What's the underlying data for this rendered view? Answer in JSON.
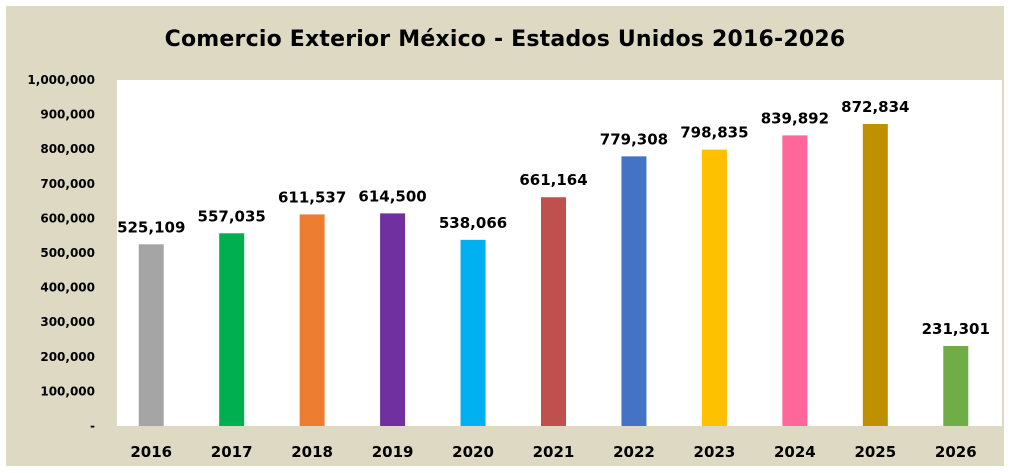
{
  "chart_data": {
    "type": "bar",
    "title": "Comercio Exterior México - Estados Unidos 2016-2026",
    "xlabel": "",
    "ylabel": "",
    "categories": [
      "2016",
      "2017",
      "2018",
      "2019",
      "2020",
      "2021",
      "2022",
      "2023",
      "2024",
      "2025",
      "2026"
    ],
    "values": [
      525109,
      557035,
      611537,
      614500,
      538066,
      661164,
      779308,
      798835,
      839892,
      872834,
      231301
    ],
    "data_labels": [
      "525,109",
      "557,035",
      "611,537",
      "614,500",
      "538,066",
      "661,164",
      "779,308",
      "798,835",
      "839,892",
      "872,834",
      "231,301"
    ],
    "bar_colors": [
      "#a5a5a5",
      "#00b050",
      "#ed7d31",
      "#7030a0",
      "#00b0f0",
      "#c0504d",
      "#4472c4",
      "#ffc000",
      "#ff6699",
      "#bf9000",
      "#70ad47"
    ],
    "ylim": [
      0,
      1000000
    ],
    "y_ticks": [
      0,
      100000,
      200000,
      300000,
      400000,
      500000,
      600000,
      700000,
      800000,
      900000,
      1000000
    ],
    "y_tick_labels": [
      "-",
      "100,000",
      "200,000",
      "300,000",
      "400,000",
      "500,000",
      "600,000",
      "700,000",
      "800,000",
      "900,000",
      "1,000,000"
    ],
    "grid": false,
    "legend": "none",
    "plot_background": "#ffffff",
    "chart_background": "#ddd9c3"
  }
}
